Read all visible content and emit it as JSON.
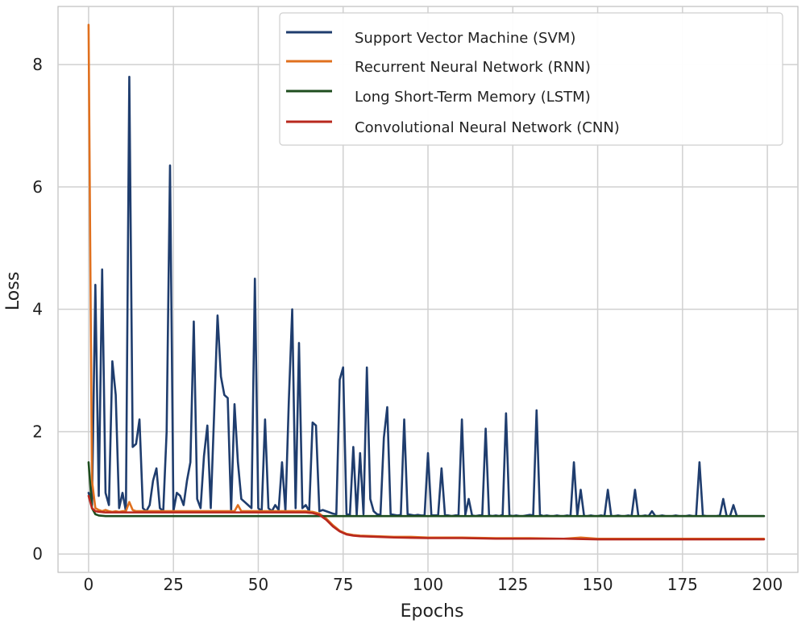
{
  "chart_data": {
    "type": "line",
    "title": "",
    "xlabel": "Epochs",
    "ylabel": "Loss",
    "xlim": [
      -9,
      209
    ],
    "ylim": [
      -0.3,
      8.95
    ],
    "xticks": [
      0,
      25,
      50,
      75,
      100,
      125,
      150,
      175,
      200
    ],
    "yticks": [
      0,
      2,
      4,
      6,
      8
    ],
    "grid": true,
    "legend_position": "top-right",
    "series": [
      {
        "name": "Support Vector Machine (SVM)",
        "color": "#1f3d6e",
        "points": [
          [
            0,
            1.0
          ],
          [
            1,
            0.8
          ],
          [
            2,
            4.4
          ],
          [
            3,
            0.95
          ],
          [
            4,
            4.65
          ],
          [
            5,
            1.0
          ],
          [
            6,
            0.8
          ],
          [
            7,
            3.15
          ],
          [
            8,
            2.6
          ],
          [
            9,
            0.75
          ],
          [
            10,
            1.0
          ],
          [
            11,
            0.7
          ],
          [
            12,
            7.8
          ],
          [
            13,
            1.75
          ],
          [
            14,
            1.8
          ],
          [
            15,
            2.2
          ],
          [
            16,
            0.75
          ],
          [
            17,
            0.7
          ],
          [
            18,
            0.8
          ],
          [
            19,
            1.2
          ],
          [
            20,
            1.4
          ],
          [
            21,
            0.75
          ],
          [
            22,
            0.7
          ],
          [
            23,
            2.0
          ],
          [
            24,
            6.35
          ],
          [
            25,
            0.7
          ],
          [
            26,
            1.0
          ],
          [
            27,
            0.95
          ],
          [
            28,
            0.8
          ],
          [
            29,
            1.2
          ],
          [
            30,
            1.5
          ],
          [
            31,
            3.8
          ],
          [
            32,
            0.9
          ],
          [
            33,
            0.75
          ],
          [
            34,
            1.6
          ],
          [
            35,
            2.1
          ],
          [
            36,
            0.75
          ],
          [
            37,
            2.3
          ],
          [
            38,
            3.9
          ],
          [
            39,
            2.9
          ],
          [
            40,
            2.6
          ],
          [
            41,
            2.55
          ],
          [
            42,
            0.7
          ],
          [
            43,
            2.45
          ],
          [
            44,
            1.5
          ],
          [
            45,
            0.9
          ],
          [
            46,
            0.85
          ],
          [
            47,
            0.8
          ],
          [
            48,
            0.75
          ],
          [
            49,
            4.5
          ],
          [
            50,
            0.75
          ],
          [
            51,
            0.7
          ],
          [
            52,
            2.2
          ],
          [
            53,
            0.75
          ],
          [
            54,
            0.7
          ],
          [
            55,
            0.8
          ],
          [
            56,
            0.72
          ],
          [
            57,
            1.5
          ],
          [
            58,
            0.7
          ],
          [
            59,
            2.5
          ],
          [
            60,
            4.0
          ],
          [
            61,
            0.75
          ],
          [
            62,
            3.45
          ],
          [
            63,
            0.75
          ],
          [
            64,
            0.8
          ],
          [
            65,
            0.7
          ],
          [
            66,
            2.15
          ],
          [
            67,
            2.1
          ],
          [
            68,
            0.7
          ],
          [
            69,
            0.72
          ],
          [
            70,
            0.7
          ],
          [
            71,
            0.68
          ],
          [
            72,
            0.66
          ],
          [
            73,
            0.65
          ],
          [
            74,
            2.85
          ],
          [
            75,
            3.05
          ],
          [
            76,
            0.65
          ],
          [
            77,
            0.64
          ],
          [
            78,
            1.75
          ],
          [
            79,
            0.64
          ],
          [
            80,
            1.65
          ],
          [
            81,
            0.65
          ],
          [
            82,
            3.05
          ],
          [
            83,
            0.9
          ],
          [
            84,
            0.7
          ],
          [
            85,
            0.65
          ],
          [
            86,
            0.64
          ],
          [
            87,
            1.9
          ],
          [
            88,
            2.4
          ],
          [
            89,
            0.65
          ],
          [
            90,
            0.64
          ],
          [
            91,
            0.63
          ],
          [
            92,
            0.64
          ],
          [
            93,
            2.2
          ],
          [
            94,
            0.65
          ],
          [
            95,
            0.64
          ],
          [
            96,
            0.63
          ],
          [
            97,
            0.64
          ],
          [
            98,
            0.63
          ],
          [
            99,
            0.63
          ],
          [
            100,
            1.65
          ],
          [
            101,
            0.64
          ],
          [
            102,
            0.63
          ],
          [
            103,
            0.64
          ],
          [
            104,
            1.4
          ],
          [
            105,
            0.64
          ],
          [
            106,
            0.63
          ],
          [
            107,
            0.62
          ],
          [
            108,
            0.63
          ],
          [
            109,
            0.64
          ],
          [
            110,
            2.2
          ],
          [
            111,
            0.64
          ],
          [
            112,
            0.9
          ],
          [
            113,
            0.63
          ],
          [
            114,
            0.62
          ],
          [
            115,
            0.63
          ],
          [
            116,
            0.64
          ],
          [
            117,
            2.05
          ],
          [
            118,
            0.63
          ],
          [
            119,
            0.62
          ],
          [
            120,
            0.63
          ],
          [
            121,
            0.62
          ],
          [
            122,
            0.64
          ],
          [
            123,
            2.3
          ],
          [
            124,
            0.63
          ],
          [
            125,
            0.62
          ],
          [
            126,
            0.63
          ],
          [
            127,
            0.62
          ],
          [
            128,
            0.62
          ],
          [
            129,
            0.63
          ],
          [
            130,
            0.64
          ],
          [
            131,
            0.63
          ],
          [
            132,
            2.35
          ],
          [
            133,
            0.64
          ],
          [
            134,
            0.62
          ],
          [
            135,
            0.63
          ],
          [
            136,
            0.62
          ],
          [
            137,
            0.62
          ],
          [
            138,
            0.63
          ],
          [
            139,
            0.62
          ],
          [
            140,
            0.62
          ],
          [
            141,
            0.63
          ],
          [
            142,
            0.62
          ],
          [
            143,
            1.5
          ],
          [
            144,
            0.63
          ],
          [
            145,
            1.05
          ],
          [
            146,
            0.62
          ],
          [
            147,
            0.62
          ],
          [
            148,
            0.63
          ],
          [
            149,
            0.62
          ],
          [
            150,
            0.62
          ],
          [
            151,
            0.63
          ],
          [
            152,
            0.62
          ],
          [
            153,
            1.05
          ],
          [
            154,
            0.62
          ],
          [
            155,
            0.62
          ],
          [
            156,
            0.63
          ],
          [
            157,
            0.62
          ],
          [
            158,
            0.62
          ],
          [
            159,
            0.63
          ],
          [
            160,
            0.62
          ],
          [
            161,
            1.05
          ],
          [
            162,
            0.62
          ],
          [
            163,
            0.62
          ],
          [
            164,
            0.63
          ],
          [
            165,
            0.62
          ],
          [
            166,
            0.7
          ],
          [
            167,
            0.62
          ],
          [
            168,
            0.62
          ],
          [
            169,
            0.63
          ],
          [
            170,
            0.62
          ],
          [
            171,
            0.62
          ],
          [
            172,
            0.62
          ],
          [
            173,
            0.63
          ],
          [
            174,
            0.62
          ],
          [
            175,
            0.62
          ],
          [
            176,
            0.62
          ],
          [
            177,
            0.63
          ],
          [
            178,
            0.62
          ],
          [
            179,
            0.62
          ],
          [
            180,
            1.5
          ],
          [
            181,
            0.63
          ],
          [
            182,
            0.62
          ],
          [
            183,
            0.62
          ],
          [
            184,
            0.62
          ],
          [
            185,
            0.62
          ],
          [
            186,
            0.63
          ],
          [
            187,
            0.9
          ],
          [
            188,
            0.62
          ],
          [
            189,
            0.62
          ],
          [
            190,
            0.8
          ],
          [
            191,
            0.62
          ],
          [
            192,
            0.62
          ],
          [
            193,
            0.62
          ],
          [
            194,
            0.62
          ],
          [
            195,
            0.62
          ],
          [
            196,
            0.62
          ],
          [
            197,
            0.62
          ],
          [
            198,
            0.62
          ],
          [
            199,
            0.62
          ]
        ]
      },
      {
        "name": "Recurrent Neural Network (RNN)",
        "color": "#e0701e",
        "points": [
          [
            0,
            8.65
          ],
          [
            1,
            1.2
          ],
          [
            2,
            0.75
          ],
          [
            3,
            0.72
          ],
          [
            4,
            0.7
          ],
          [
            5,
            0.72
          ],
          [
            6,
            0.7
          ],
          [
            7,
            0.69
          ],
          [
            8,
            0.7
          ],
          [
            9,
            0.69
          ],
          [
            10,
            0.7
          ],
          [
            11,
            0.7
          ],
          [
            12,
            0.85
          ],
          [
            13,
            0.72
          ],
          [
            14,
            0.7
          ],
          [
            15,
            0.7
          ],
          [
            20,
            0.7
          ],
          [
            25,
            0.7
          ],
          [
            30,
            0.7
          ],
          [
            35,
            0.7
          ],
          [
            40,
            0.7
          ],
          [
            43,
            0.7
          ],
          [
            44,
            0.8
          ],
          [
            45,
            0.7
          ],
          [
            50,
            0.7
          ],
          [
            55,
            0.7
          ],
          [
            60,
            0.7
          ],
          [
            64,
            0.7
          ],
          [
            66,
            0.69
          ],
          [
            68,
            0.66
          ],
          [
            70,
            0.58
          ],
          [
            72,
            0.47
          ],
          [
            74,
            0.38
          ],
          [
            76,
            0.33
          ],
          [
            78,
            0.31
          ],
          [
            80,
            0.3
          ],
          [
            85,
            0.29
          ],
          [
            90,
            0.28
          ],
          [
            95,
            0.28
          ],
          [
            100,
            0.27
          ],
          [
            110,
            0.27
          ],
          [
            120,
            0.26
          ],
          [
            130,
            0.26
          ],
          [
            140,
            0.25
          ],
          [
            145,
            0.27
          ],
          [
            150,
            0.25
          ],
          [
            160,
            0.25
          ],
          [
            170,
            0.25
          ],
          [
            180,
            0.25
          ],
          [
            190,
            0.25
          ],
          [
            199,
            0.25
          ]
        ]
      },
      {
        "name": "Long Short-Term Memory (LSTM)",
        "color": "#1e4d1e",
        "points": [
          [
            0,
            1.5
          ],
          [
            1,
            0.75
          ],
          [
            2,
            0.65
          ],
          [
            3,
            0.63
          ],
          [
            5,
            0.62
          ],
          [
            10,
            0.62
          ],
          [
            20,
            0.62
          ],
          [
            30,
            0.62
          ],
          [
            40,
            0.62
          ],
          [
            50,
            0.62
          ],
          [
            60,
            0.62
          ],
          [
            70,
            0.62
          ],
          [
            80,
            0.62
          ],
          [
            90,
            0.62
          ],
          [
            100,
            0.62
          ],
          [
            110,
            0.62
          ],
          [
            120,
            0.62
          ],
          [
            130,
            0.62
          ],
          [
            140,
            0.62
          ],
          [
            150,
            0.62
          ],
          [
            160,
            0.62
          ],
          [
            170,
            0.62
          ],
          [
            180,
            0.62
          ],
          [
            190,
            0.62
          ],
          [
            199,
            0.62
          ]
        ]
      },
      {
        "name": "Convolutional Neural Network (CNN)",
        "color": "#b8281e",
        "points": [
          [
            0,
            0.95
          ],
          [
            1,
            0.75
          ],
          [
            2,
            0.7
          ],
          [
            3,
            0.69
          ],
          [
            5,
            0.68
          ],
          [
            10,
            0.68
          ],
          [
            20,
            0.68
          ],
          [
            30,
            0.68
          ],
          [
            40,
            0.68
          ],
          [
            50,
            0.68
          ],
          [
            60,
            0.68
          ],
          [
            64,
            0.68
          ],
          [
            66,
            0.67
          ],
          [
            68,
            0.64
          ],
          [
            70,
            0.56
          ],
          [
            72,
            0.45
          ],
          [
            74,
            0.37
          ],
          [
            76,
            0.32
          ],
          [
            78,
            0.3
          ],
          [
            80,
            0.29
          ],
          [
            85,
            0.28
          ],
          [
            90,
            0.27
          ],
          [
            100,
            0.26
          ],
          [
            110,
            0.26
          ],
          [
            120,
            0.25
          ],
          [
            130,
            0.25
          ],
          [
            140,
            0.25
          ],
          [
            150,
            0.24
          ],
          [
            160,
            0.24
          ],
          [
            170,
            0.24
          ],
          [
            180,
            0.24
          ],
          [
            190,
            0.24
          ],
          [
            199,
            0.24
          ]
        ]
      }
    ]
  }
}
